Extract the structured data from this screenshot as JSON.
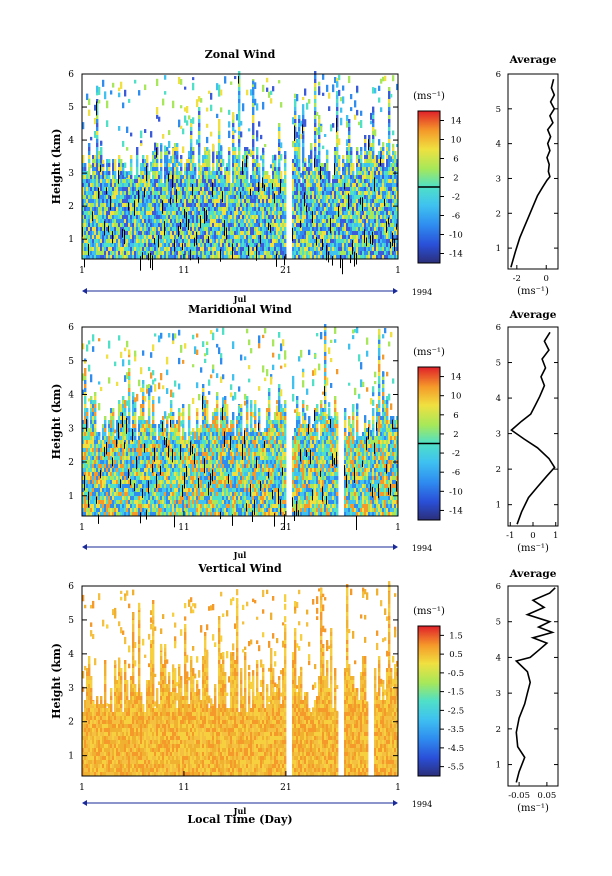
{
  "figure": {
    "xlabel": "Local Time (Day)",
    "month_label": "Jul",
    "year_label": "1994",
    "ylabel": "Height (km)",
    "average_title": "Average",
    "unit_label": "(ms⁻¹)"
  },
  "chart_data": [
    {
      "type": "heatmap",
      "title": "Zonal Wind",
      "xlabel": "",
      "ylabel": "Height (km)",
      "x_tick_labels": [
        "1",
        "11",
        "21",
        "1"
      ],
      "xlim_days": [
        1,
        32
      ],
      "ylim": [
        0.4,
        6
      ],
      "y_ticks": [
        1,
        2,
        3,
        4,
        5,
        6
      ],
      "colorbar": {
        "label": "(ms⁻¹)",
        "ticks": [
          14,
          10,
          6,
          2,
          -2,
          -6,
          -10,
          -14
        ],
        "range": [
          -16,
          16
        ],
        "contour_line": 0
      },
      "grid": false
    },
    {
      "type": "line",
      "title": "Average",
      "xlabel": "(ms⁻¹)",
      "ylabel": "",
      "x_ticks": [
        -2,
        0
      ],
      "xlim": [
        -2.6,
        0.8
      ],
      "ylim": [
        0.4,
        6
      ],
      "y_ticks": [
        1,
        2,
        3,
        4,
        5,
        6
      ],
      "points": [
        [
          -2.4,
          0.45
        ],
        [
          -2.1,
          0.9
        ],
        [
          -1.8,
          1.3
        ],
        [
          -1.5,
          1.6
        ],
        [
          -1.2,
          1.9
        ],
        [
          -0.9,
          2.2
        ],
        [
          -0.6,
          2.5
        ],
        [
          -0.25,
          2.75
        ],
        [
          0.05,
          2.95
        ],
        [
          0.25,
          3.05
        ],
        [
          0.15,
          3.2
        ],
        [
          0.2,
          3.4
        ],
        [
          0.05,
          3.6
        ],
        [
          0.25,
          3.8
        ],
        [
          0.1,
          4.0
        ],
        [
          0.3,
          4.2
        ],
        [
          0.1,
          4.4
        ],
        [
          0.45,
          4.6
        ],
        [
          0.25,
          4.8
        ],
        [
          0.55,
          5.0
        ],
        [
          0.3,
          5.2
        ],
        [
          0.55,
          5.4
        ],
        [
          0.35,
          5.6
        ],
        [
          0.5,
          5.85
        ]
      ]
    },
    {
      "type": "heatmap",
      "title": "Maridional Wind",
      "xlabel": "",
      "ylabel": "Height (km)",
      "x_tick_labels": [
        "1",
        "11",
        "21",
        "1"
      ],
      "xlim_days": [
        1,
        32
      ],
      "ylim": [
        0.4,
        6
      ],
      "y_ticks": [
        1,
        2,
        3,
        4,
        5,
        6
      ],
      "colorbar": {
        "label": "(ms⁻¹)",
        "ticks": [
          14,
          10,
          6,
          2,
          -2,
          -6,
          -10,
          -14
        ],
        "range": [
          -16,
          16
        ],
        "contour_line": 0
      },
      "grid": false
    },
    {
      "type": "line",
      "title": "Average",
      "xlabel": "(ms⁻¹)",
      "ylabel": "",
      "x_ticks": [
        -1,
        0,
        1
      ],
      "xlim": [
        -1.1,
        1.1
      ],
      "ylim": [
        0.4,
        6
      ],
      "y_ticks": [
        1,
        2,
        3,
        4,
        5,
        6
      ],
      "points": [
        [
          -0.7,
          0.45
        ],
        [
          -0.5,
          0.8
        ],
        [
          -0.2,
          1.2
        ],
        [
          0.2,
          1.5
        ],
        [
          0.6,
          1.8
        ],
        [
          0.95,
          2.05
        ],
        [
          0.7,
          2.3
        ],
        [
          0.2,
          2.6
        ],
        [
          -0.4,
          2.85
        ],
        [
          -0.95,
          3.1
        ],
        [
          -0.5,
          3.35
        ],
        [
          -0.1,
          3.55
        ],
        [
          0.1,
          3.8
        ],
        [
          0.3,
          4.05
        ],
        [
          0.5,
          4.35
        ],
        [
          0.35,
          4.6
        ],
        [
          0.55,
          4.85
        ],
        [
          0.4,
          5.1
        ],
        [
          0.7,
          5.35
        ],
        [
          0.5,
          5.6
        ],
        [
          0.75,
          5.85
        ]
      ]
    },
    {
      "type": "heatmap",
      "title": "Vertical Wind",
      "xlabel": "Local Time (Day)",
      "ylabel": "Height (km)",
      "x_tick_labels": [
        "1",
        "11",
        "21",
        "1"
      ],
      "xlim_days": [
        1,
        32
      ],
      "ylim": [
        0.4,
        6
      ],
      "y_ticks": [
        1,
        2,
        3,
        4,
        5,
        6
      ],
      "colorbar": {
        "label": "(ms⁻¹)",
        "ticks": [
          1.5,
          0.5,
          -0.5,
          -1.5,
          -2.5,
          -3.5,
          -4.5,
          -5.5
        ],
        "range": [
          -6,
          2
        ]
      },
      "grid": false
    },
    {
      "type": "line",
      "title": "Average",
      "xlabel": "(ms⁻¹)",
      "ylabel": "",
      "x_ticks": [
        -0.05,
        0.05
      ],
      "x_tick_labels": [
        "-0.05",
        "0.05"
      ],
      "xlim": [
        -0.09,
        0.09
      ],
      "ylim": [
        0.4,
        6
      ],
      "y_ticks": [
        1,
        2,
        3,
        4,
        5,
        6
      ],
      "points": [
        [
          -0.06,
          0.5
        ],
        [
          -0.05,
          0.8
        ],
        [
          -0.03,
          1.2
        ],
        [
          -0.055,
          1.5
        ],
        [
          -0.06,
          1.9
        ],
        [
          -0.05,
          2.3
        ],
        [
          -0.03,
          2.7
        ],
        [
          -0.02,
          3.0
        ],
        [
          -0.01,
          3.3
        ],
        [
          -0.02,
          3.6
        ],
        [
          -0.06,
          3.9
        ],
        [
          -0.01,
          4.0
        ],
        [
          0.02,
          4.2
        ],
        [
          0.05,
          4.4
        ],
        [
          0.0,
          4.55
        ],
        [
          0.07,
          4.7
        ],
        [
          0.02,
          4.85
        ],
        [
          0.06,
          5.0
        ],
        [
          -0.02,
          5.2
        ],
        [
          0.04,
          5.4
        ],
        [
          0.0,
          5.6
        ],
        [
          0.06,
          5.8
        ],
        [
          0.08,
          5.95
        ]
      ]
    }
  ]
}
